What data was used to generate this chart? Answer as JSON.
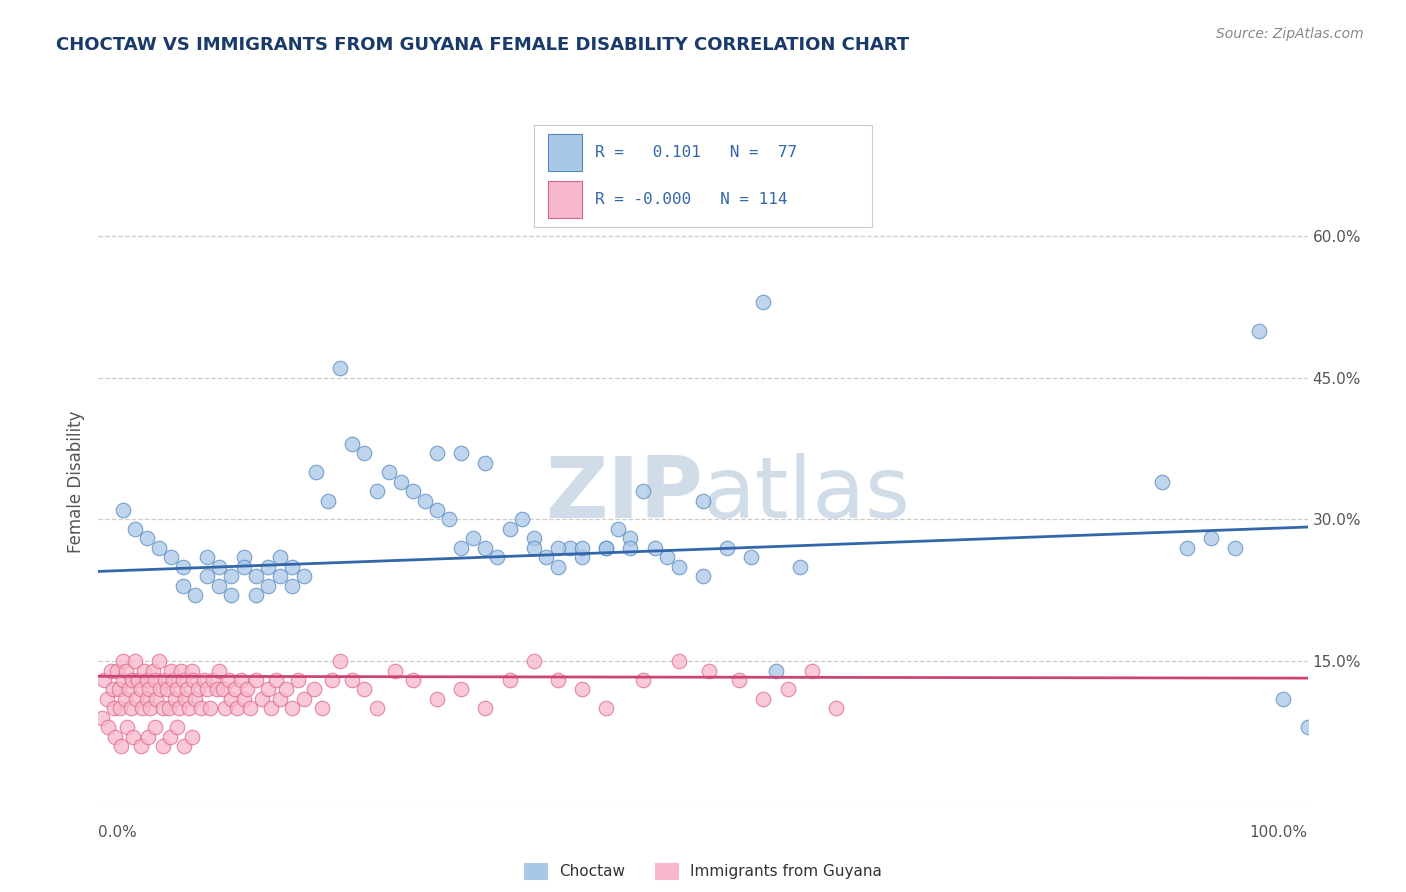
{
  "title": "CHOCTAW VS IMMIGRANTS FROM GUYANA FEMALE DISABILITY CORRELATION CHART",
  "source_text": "Source: ZipAtlas.com",
  "ylabel": "Female Disability",
  "xlim": [
    0,
    1
  ],
  "ylim": [
    0.0,
    0.68
  ],
  "yticks": [
    0.15,
    0.3,
    0.45,
    0.6
  ],
  "yticklabels": [
    "15.0%",
    "30.0%",
    "45.0%",
    "60.0%"
  ],
  "legend_labels": [
    "Choctaw",
    "Immigrants from Guyana"
  ],
  "choctaw_R": 0.101,
  "choctaw_N": 77,
  "guyana_R": -0.0,
  "guyana_N": 114,
  "blue_dot_color": "#a8c8e8",
  "blue_edge_color": "#5588bb",
  "pink_dot_color": "#f8b8cc",
  "pink_edge_color": "#dd6688",
  "blue_line_color": "#3366aa",
  "pink_line_color": "#cc4477",
  "watermark_color": "#d0dde8",
  "background_color": "#ffffff",
  "title_color": "#1a3a6a",
  "grid_color": "#cccccc",
  "tick_color": "#555555",
  "blue_line_y0": 0.245,
  "blue_line_y1": 0.292,
  "pink_line_y0": 0.134,
  "pink_line_y1": 0.132,
  "choctaw_x": [
    0.02,
    0.03,
    0.04,
    0.05,
    0.06,
    0.07,
    0.07,
    0.08,
    0.09,
    0.09,
    0.1,
    0.1,
    0.11,
    0.11,
    0.12,
    0.12,
    0.13,
    0.13,
    0.14,
    0.14,
    0.15,
    0.15,
    0.16,
    0.16,
    0.17,
    0.18,
    0.19,
    0.2,
    0.21,
    0.22,
    0.23,
    0.24,
    0.25,
    0.26,
    0.27,
    0.28,
    0.29,
    0.3,
    0.31,
    0.32,
    0.33,
    0.34,
    0.35,
    0.36,
    0.37,
    0.38,
    0.39,
    0.4,
    0.42,
    0.43,
    0.44,
    0.45,
    0.46,
    0.47,
    0.48,
    0.5,
    0.52,
    0.54,
    0.56,
    0.58,
    0.28,
    0.3,
    0.32,
    0.36,
    0.38,
    0.4,
    0.42,
    0.44,
    0.5,
    0.55,
    0.88,
    0.9,
    0.92,
    0.94,
    0.96,
    0.98,
    1.0
  ],
  "choctaw_y": [
    0.31,
    0.29,
    0.28,
    0.27,
    0.26,
    0.25,
    0.23,
    0.22,
    0.24,
    0.26,
    0.23,
    0.25,
    0.24,
    0.22,
    0.26,
    0.25,
    0.24,
    0.22,
    0.25,
    0.23,
    0.24,
    0.26,
    0.25,
    0.23,
    0.24,
    0.35,
    0.32,
    0.46,
    0.38,
    0.37,
    0.33,
    0.35,
    0.34,
    0.33,
    0.32,
    0.31,
    0.3,
    0.27,
    0.28,
    0.27,
    0.26,
    0.29,
    0.3,
    0.28,
    0.26,
    0.25,
    0.27,
    0.26,
    0.27,
    0.29,
    0.28,
    0.33,
    0.27,
    0.26,
    0.25,
    0.24,
    0.27,
    0.26,
    0.14,
    0.25,
    0.37,
    0.37,
    0.36,
    0.27,
    0.27,
    0.27,
    0.27,
    0.27,
    0.32,
    0.53,
    0.34,
    0.27,
    0.28,
    0.27,
    0.5,
    0.11,
    0.08
  ],
  "guyana_x": [
    0.005,
    0.007,
    0.01,
    0.012,
    0.013,
    0.015,
    0.017,
    0.018,
    0.02,
    0.02,
    0.022,
    0.023,
    0.025,
    0.027,
    0.028,
    0.03,
    0.031,
    0.033,
    0.035,
    0.036,
    0.038,
    0.04,
    0.04,
    0.042,
    0.043,
    0.045,
    0.047,
    0.048,
    0.05,
    0.051,
    0.053,
    0.055,
    0.057,
    0.058,
    0.06,
    0.062,
    0.063,
    0.065,
    0.067,
    0.068,
    0.07,
    0.072,
    0.073,
    0.075,
    0.077,
    0.078,
    0.08,
    0.082,
    0.085,
    0.087,
    0.09,
    0.092,
    0.095,
    0.098,
    0.1,
    0.103,
    0.105,
    0.108,
    0.11,
    0.113,
    0.115,
    0.118,
    0.12,
    0.123,
    0.125,
    0.13,
    0.135,
    0.14,
    0.143,
    0.147,
    0.15,
    0.155,
    0.16,
    0.165,
    0.17,
    0.178,
    0.185,
    0.193,
    0.2,
    0.21,
    0.22,
    0.23,
    0.245,
    0.26,
    0.28,
    0.3,
    0.32,
    0.34,
    0.36,
    0.38,
    0.4,
    0.42,
    0.45,
    0.48,
    0.505,
    0.53,
    0.55,
    0.57,
    0.59,
    0.61,
    0.003,
    0.008,
    0.014,
    0.019,
    0.024,
    0.029,
    0.035,
    0.041,
    0.047,
    0.053,
    0.059,
    0.065,
    0.071,
    0.077
  ],
  "guyana_y": [
    0.13,
    0.11,
    0.14,
    0.12,
    0.1,
    0.14,
    0.12,
    0.1,
    0.15,
    0.13,
    0.11,
    0.14,
    0.12,
    0.1,
    0.13,
    0.15,
    0.11,
    0.13,
    0.12,
    0.1,
    0.14,
    0.13,
    0.11,
    0.12,
    0.1,
    0.14,
    0.13,
    0.11,
    0.15,
    0.12,
    0.1,
    0.13,
    0.12,
    0.1,
    0.14,
    0.13,
    0.11,
    0.12,
    0.1,
    0.14,
    0.13,
    0.11,
    0.12,
    0.1,
    0.14,
    0.13,
    0.11,
    0.12,
    0.1,
    0.13,
    0.12,
    0.1,
    0.13,
    0.12,
    0.14,
    0.12,
    0.1,
    0.13,
    0.11,
    0.12,
    0.1,
    0.13,
    0.11,
    0.12,
    0.1,
    0.13,
    0.11,
    0.12,
    0.1,
    0.13,
    0.11,
    0.12,
    0.1,
    0.13,
    0.11,
    0.12,
    0.1,
    0.13,
    0.15,
    0.13,
    0.12,
    0.1,
    0.14,
    0.13,
    0.11,
    0.12,
    0.1,
    0.13,
    0.15,
    0.13,
    0.12,
    0.1,
    0.13,
    0.15,
    0.14,
    0.13,
    0.11,
    0.12,
    0.14,
    0.1,
    0.09,
    0.08,
    0.07,
    0.06,
    0.08,
    0.07,
    0.06,
    0.07,
    0.08,
    0.06,
    0.07,
    0.08,
    0.06,
    0.07
  ]
}
